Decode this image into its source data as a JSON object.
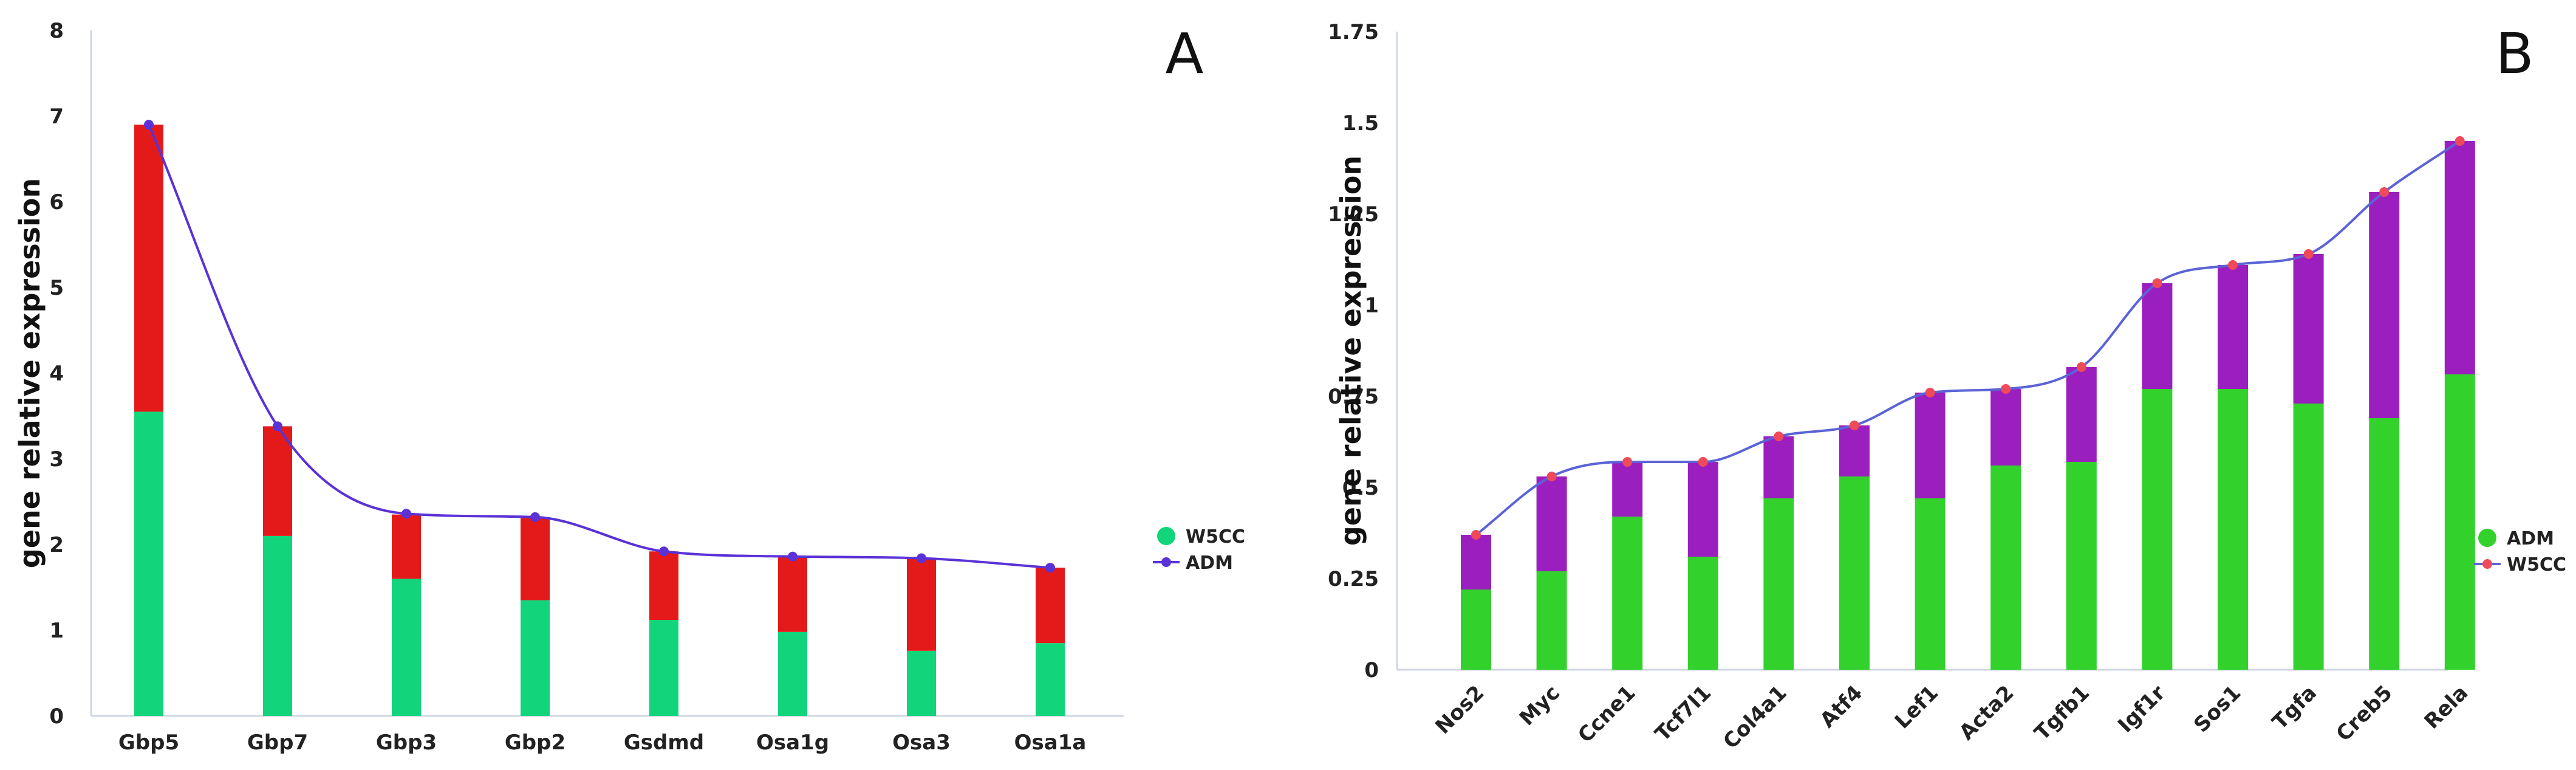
{
  "chart_data": [
    {
      "type": "bar",
      "panel_label": "A",
      "ylabel": "gene relative expression",
      "ylim": [
        0,
        8
      ],
      "yticks": [
        "0",
        "1",
        "2",
        "3",
        "4",
        "5",
        "6",
        "7",
        "8"
      ],
      "categories": [
        "Gbp5",
        "Gbp7",
        "Gbp3",
        "Gbp2",
        "Gsdmd",
        "Osa1g",
        "Osa3",
        "Osa1a"
      ],
      "series": [
        {
          "name": "W5CC",
          "kind": "stacked-bar",
          "color": "#12d47a",
          "values": [
            3.55,
            2.1,
            1.6,
            1.35,
            1.12,
            0.98,
            0.76,
            0.85
          ]
        },
        {
          "name": "",
          "kind": "stacked-bar",
          "color": "#e41a1a",
          "values": [
            3.35,
            1.28,
            0.75,
            0.97,
            0.8,
            0.88,
            1.08,
            0.88
          ]
        },
        {
          "name": "ADM",
          "kind": "smooth-line",
          "color": "#5a32d6",
          "values": [
            6.9,
            3.38,
            2.36,
            2.32,
            1.92,
            1.86,
            1.84,
            1.73
          ]
        }
      ],
      "legend_position": "right",
      "grid": false
    },
    {
      "type": "bar",
      "panel_label": "B",
      "ylabel": "gene relative expression",
      "ylim": [
        0,
        1.75
      ],
      "yticks": [
        "0",
        "0.25",
        "0.5",
        "0.75",
        "1",
        "1.25",
        "1.5",
        "1.75"
      ],
      "categories": [
        "Nos2",
        "Myc",
        "Ccne1",
        "Tcf7l1",
        "Col4a1",
        "Atf4",
        "Lef1",
        "Acta2",
        "Tgfb1",
        "Igf1r",
        "Sos1",
        "Tgfa",
        "Creb5",
        "Rela"
      ],
      "series": [
        {
          "name": "ADM",
          "kind": "stacked-bar",
          "color": "#33d12c",
          "values": [
            0.22,
            0.27,
            0.42,
            0.31,
            0.47,
            0.53,
            0.47,
            0.56,
            0.57,
            0.77,
            0.77,
            0.73,
            0.69,
            0.81
          ]
        },
        {
          "name": "",
          "kind": "stacked-bar",
          "color": "#9b1fbe",
          "values": [
            0.15,
            0.26,
            0.15,
            0.26,
            0.17,
            0.14,
            0.29,
            0.21,
            0.26,
            0.29,
            0.34,
            0.41,
            0.62,
            0.64
          ]
        },
        {
          "name": "W5CC",
          "kind": "smooth-line",
          "color": "#5b63d6",
          "marker_color": "#f04a5a",
          "values": [
            0.37,
            0.53,
            0.57,
            0.57,
            0.64,
            0.67,
            0.76,
            0.77,
            0.83,
            1.06,
            1.11,
            1.14,
            1.31,
            1.45
          ]
        }
      ],
      "legend_position": "right",
      "grid": false
    }
  ]
}
